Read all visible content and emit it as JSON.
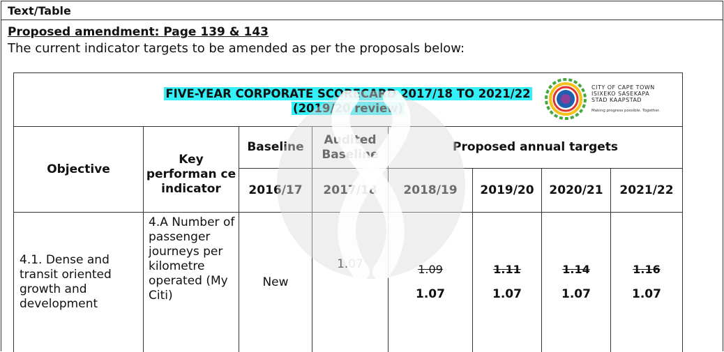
{
  "header": {
    "label": "Text/Table"
  },
  "amendment": {
    "title": "Proposed amendment: Page 139 & 143",
    "intro": "The current indicator targets to be amended as per the proposals below:"
  },
  "scorecard": {
    "title_line1": "FIVE-YEAR CORPORATE SCORECARD 2017/18 TO 2021/22",
    "title_line2": "(2019/20 review)",
    "logo": {
      "line1": "CITY OF CAPE TOWN",
      "line2": "ISIXEKO SASEKAPA",
      "line3": "STAD KAAPSTAD",
      "slogan": "Making progress possible. Together.",
      "colors": [
        "#1e5fb0",
        "#e2342d",
        "#f3c21b",
        "#46a842",
        "#8c3f97"
      ]
    },
    "columns": {
      "objective": "Objective",
      "kpi": "Key performan ce indicator",
      "baseline": "Baseline",
      "audited": "Audited Baseline",
      "proposed": "Proposed annual targets",
      "years": [
        "2016/17",
        "2017/18",
        "2018/19",
        "2019/20",
        "2020/21",
        "2021/22"
      ]
    },
    "row": {
      "objective": "4.1. Dense and transit oriented growth and development",
      "kpi": "4.A Number of passenger journeys per kilometre operated (My Citi)",
      "baseline": "New",
      "audited": "1.07",
      "targets": [
        {
          "old": "1.09",
          "new": "1.07"
        },
        {
          "old": "1.11",
          "new": "1.07"
        },
        {
          "old": "1.14",
          "new": "1.07"
        },
        {
          "old": "1.16",
          "new": "1.07"
        }
      ]
    }
  }
}
